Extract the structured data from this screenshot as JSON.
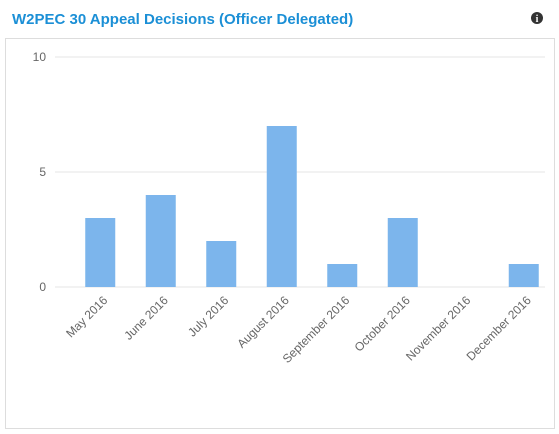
{
  "chart_data": {
    "type": "bar",
    "title": "W2PEC 30 Appeal Decisions (Officer Delegated)",
    "categories": [
      "May 2016",
      "June 2016",
      "July 2016",
      "August 2016",
      "September 2016",
      "October 2016",
      "November 2016",
      "December 2016"
    ],
    "values": [
      3,
      4,
      2,
      7,
      1,
      3,
      0,
      1
    ],
    "color": "#7cb5ec",
    "ylim": [
      0,
      10
    ],
    "yticks": [
      0,
      5,
      10
    ],
    "grid": true
  }
}
